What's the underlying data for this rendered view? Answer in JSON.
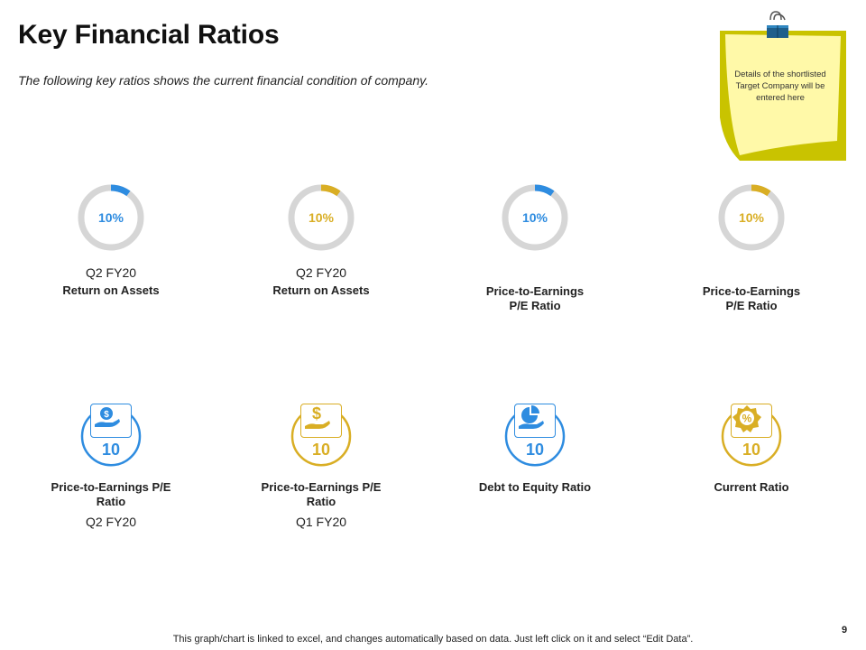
{
  "header": {
    "title": "Key Financial Ratios",
    "subtitle": "The following key ratios shows  the current financial condition of company."
  },
  "note": {
    "text": "Details of the shortlisted Target Company will be entered here",
    "color": "#FFF9A8",
    "border_color": "#C9C300"
  },
  "colors": {
    "blue": "#2E8CE0",
    "gold": "#D9AE24",
    "track": "#D6D6D6"
  },
  "ratios": [
    {
      "value": "10%",
      "percent": 10,
      "color": "#2E8CE0",
      "period": "Q2 FY20",
      "label": "Return on Assets"
    },
    {
      "value": "10%",
      "percent": 10,
      "color": "#D9AE24",
      "period": "Q2 FY20",
      "label": "Return on Assets"
    },
    {
      "value": "10%",
      "percent": 10,
      "color": "#2E8CE0",
      "period": "",
      "label": "Price-to-Earnings P/E Ratio"
    },
    {
      "value": "10%",
      "percent": 10,
      "color": "#D9AE24",
      "period": "",
      "label": "Price-to-Earnings P/E Ratio"
    }
  ],
  "metrics": [
    {
      "value": "10",
      "icon": "dollar-coin-hand-icon",
      "color": "#2E8CE0",
      "label": "Price-to-Earnings P/E Ratio",
      "period": "Q2 FY20"
    },
    {
      "value": "10",
      "icon": "dollar-hand-icon",
      "color": "#D9AE24",
      "label": "Price-to-Earnings P/E Ratio",
      "period": "Q1 FY20"
    },
    {
      "value": "10",
      "icon": "pie-chart-hand-icon",
      "color": "#2E8CE0",
      "label": "Debt to Equity Ratio",
      "period": ""
    },
    {
      "value": "10",
      "icon": "percent-badge-icon",
      "color": "#D9AE24",
      "label": "Current Ratio",
      "period": ""
    }
  ],
  "footer": {
    "text": "This graph/chart is linked to excel, and changes automatically based on data. Just left click on it and select “Edit Data”.",
    "page_number": "9"
  }
}
